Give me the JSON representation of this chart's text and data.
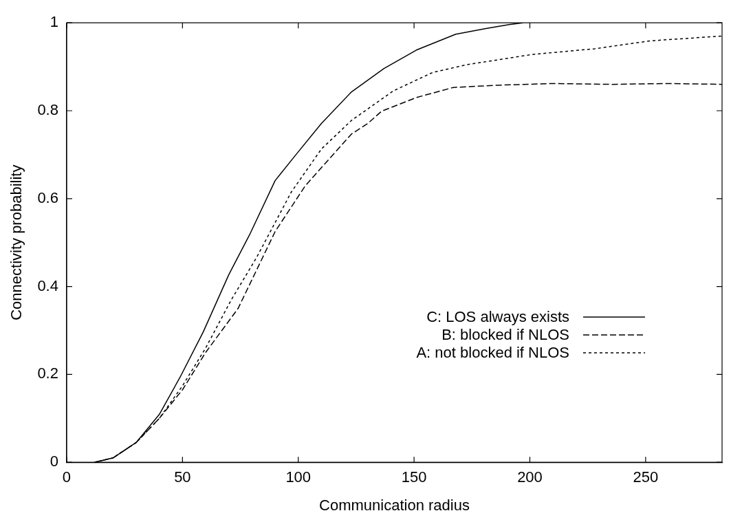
{
  "chart_data": {
    "type": "line",
    "xlabel": "Communication radius",
    "ylabel": "Connectivity probability",
    "xlim": [
      0,
      283
    ],
    "ylim": [
      0,
      1
    ],
    "xticks": [
      0,
      50,
      100,
      150,
      200,
      250
    ],
    "yticks": [
      0,
      0.2,
      0.4,
      0.6,
      0.8,
      1
    ],
    "grid": false,
    "legend": "right",
    "marker": "none",
    "series": [
      {
        "name": "C: LOS always exists",
        "color": "#000000",
        "line_style": "solid",
        "x": [
          12,
          20,
          30,
          40,
          49,
          59,
          70,
          79,
          90,
          99,
          110,
          123,
          137,
          151,
          168,
          181,
          191,
          197
        ],
        "values": [
          0,
          0.01,
          0.045,
          0.109,
          0.194,
          0.297,
          0.427,
          0.518,
          0.641,
          0.7,
          0.771,
          0.843,
          0.896,
          0.938,
          0.974,
          0.987,
          0.996,
          1
        ]
      },
      {
        "name": "B: blocked if NLOS",
        "color": "#000000",
        "line_style": "dashed",
        "x": [
          12,
          20,
          30,
          40,
          50,
          60,
          74,
          90,
          103,
          116,
          123,
          130,
          136,
          151,
          167,
          186,
          210,
          235,
          260,
          283
        ],
        "values": [
          0,
          0.01,
          0.045,
          0.1,
          0.165,
          0.25,
          0.35,
          0.525,
          0.629,
          0.706,
          0.747,
          0.771,
          0.799,
          0.83,
          0.853,
          0.858,
          0.862,
          0.86,
          0.862,
          0.86
        ]
      },
      {
        "name": "A: not blocked if NLOS",
        "color": "#000000",
        "line_style": "dotted",
        "x": [
          12,
          20,
          30,
          40,
          50,
          60,
          71,
          82,
          97,
          110,
          123,
          141,
          158,
          173,
          201,
          228,
          252,
          283
        ],
        "values": [
          0,
          0.01,
          0.045,
          0.1,
          0.174,
          0.26,
          0.369,
          0.466,
          0.615,
          0.713,
          0.778,
          0.845,
          0.887,
          0.905,
          0.928,
          0.941,
          0.959,
          0.97
        ]
      }
    ]
  }
}
